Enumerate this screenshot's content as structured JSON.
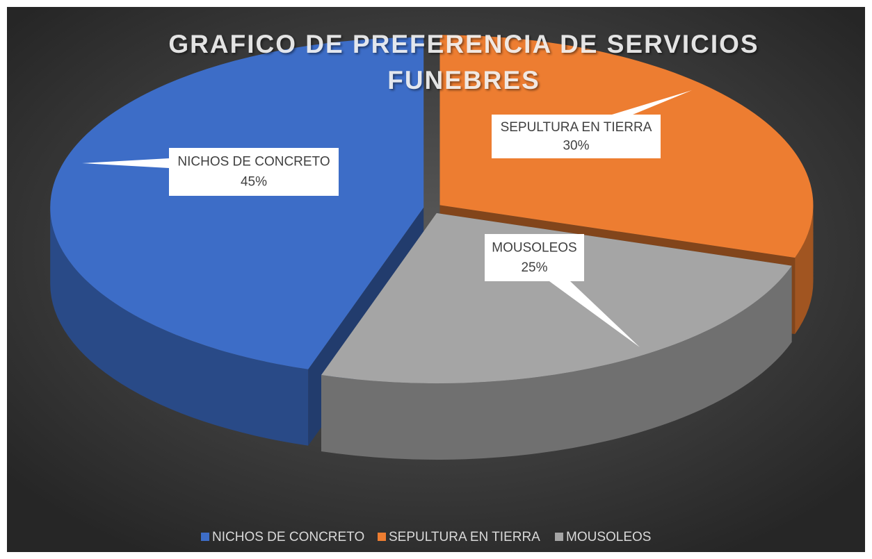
{
  "chart_data": {
    "type": "pie",
    "title": "GRAFICO DE PREFERENCIA DE  SERVICIOS FUNEBRES",
    "categories": [
      "NICHOS DE CONCRETO",
      "SEPULTURA EN TIERRA",
      "MOUSOLEOS"
    ],
    "values": [
      45,
      30,
      25
    ],
    "value_labels": [
      "45%",
      "30%",
      "25%"
    ],
    "colors": [
      "#3d6dc7",
      "#ed7d31",
      "#a5a5a5"
    ],
    "legend": "bottom",
    "start_category": 1
  }
}
